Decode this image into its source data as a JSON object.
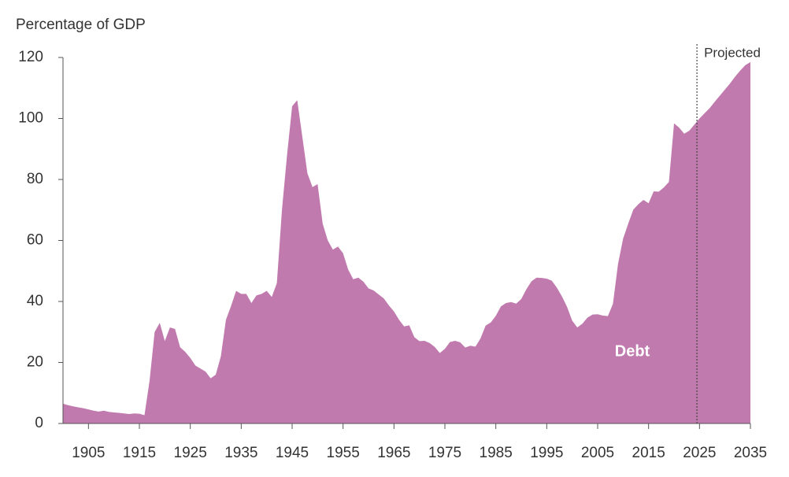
{
  "chart_data": {
    "type": "area",
    "axis_title": "Percentage of GDP",
    "series_label": "Debt",
    "projection_label": "Projected",
    "projection_start": 2024.5,
    "color": "#c17aad",
    "x": [
      1900,
      1901,
      1902,
      1903,
      1904,
      1905,
      1906,
      1907,
      1908,
      1909,
      1910,
      1911,
      1912,
      1913,
      1914,
      1915,
      1916,
      1917,
      1918,
      1919,
      1920,
      1921,
      1922,
      1923,
      1924,
      1925,
      1926,
      1927,
      1928,
      1929,
      1930,
      1931,
      1932,
      1933,
      1934,
      1935,
      1936,
      1937,
      1938,
      1939,
      1940,
      1941,
      1942,
      1943,
      1944,
      1945,
      1946,
      1947,
      1948,
      1949,
      1950,
      1951,
      1952,
      1953,
      1954,
      1955,
      1956,
      1957,
      1958,
      1959,
      1960,
      1961,
      1962,
      1963,
      1964,
      1965,
      1966,
      1967,
      1968,
      1969,
      1970,
      1971,
      1972,
      1973,
      1974,
      1975,
      1976,
      1977,
      1978,
      1979,
      1980,
      1981,
      1982,
      1983,
      1984,
      1985,
      1986,
      1987,
      1988,
      1989,
      1990,
      1991,
      1992,
      1993,
      1994,
      1995,
      1996,
      1997,
      1998,
      1999,
      2000,
      2001,
      2002,
      2003,
      2004,
      2005,
      2006,
      2007,
      2008,
      2009,
      2010,
      2011,
      2012,
      2013,
      2014,
      2015,
      2016,
      2017,
      2018,
      2019,
      2020,
      2021,
      2022,
      2023,
      2024,
      2025,
      2026,
      2027,
      2028,
      2029,
      2030,
      2031,
      2032,
      2033,
      2034,
      2035
    ],
    "values": [
      6.5,
      6,
      5.6,
      5.3,
      5,
      4.6,
      4.2,
      3.9,
      4.2,
      3.8,
      3.6,
      3.5,
      3.3,
      3.1,
      3.3,
      3.2,
      2.7,
      14,
      30,
      33,
      27,
      31.5,
      31,
      25,
      23.5,
      21.5,
      19,
      18,
      17,
      14.8,
      16,
      22,
      34,
      38.5,
      43.5,
      42.5,
      42.5,
      39.5,
      42,
      42.5,
      43.5,
      41.5,
      46,
      70,
      88,
      104,
      106,
      94,
      82,
      77.5,
      78.5,
      65.5,
      60,
      57,
      58,
      55.8,
      50.5,
      47.3,
      47.8,
      46.5,
      44.3,
      43.6,
      42.3,
      41,
      38.7,
      36.7,
      34,
      31.8,
      32.2,
      28.3,
      27,
      27.1,
      26.4,
      25.1,
      23.1,
      24.5,
      26.7,
      27.1,
      26.6,
      24.9,
      25.5,
      25.2,
      27.9,
      32.1,
      33.1,
      35.3,
      38.4,
      39.5,
      39.8,
      39.3,
      40.8,
      44,
      46.6,
      47.8,
      47.7,
      47.5,
      46.8,
      44.5,
      41.6,
      38.2,
      33.7,
      31.5,
      32.7,
      34.7,
      35.7,
      35.8,
      35.4,
      35.2,
      39.2,
      52.3,
      60.6,
      65.5,
      70.1,
      71.9,
      73.3,
      72.2,
      76.1,
      76,
      77.4,
      79.2,
      98.4,
      97,
      95,
      96,
      98,
      100,
      101.7,
      103.4,
      105.5,
      107.5,
      109.5,
      111.5,
      113.7,
      115.7,
      117.5,
      118.5
    ],
    "xlim": [
      1900,
      2035
    ],
    "xticks": [
      1905,
      1915,
      1925,
      1935,
      1945,
      1955,
      1965,
      1975,
      1985,
      1995,
      2005,
      2015,
      2025,
      2035
    ],
    "ylim": [
      0,
      120
    ],
    "yticks": [
      0,
      20,
      40,
      60,
      80,
      100,
      120
    ]
  }
}
